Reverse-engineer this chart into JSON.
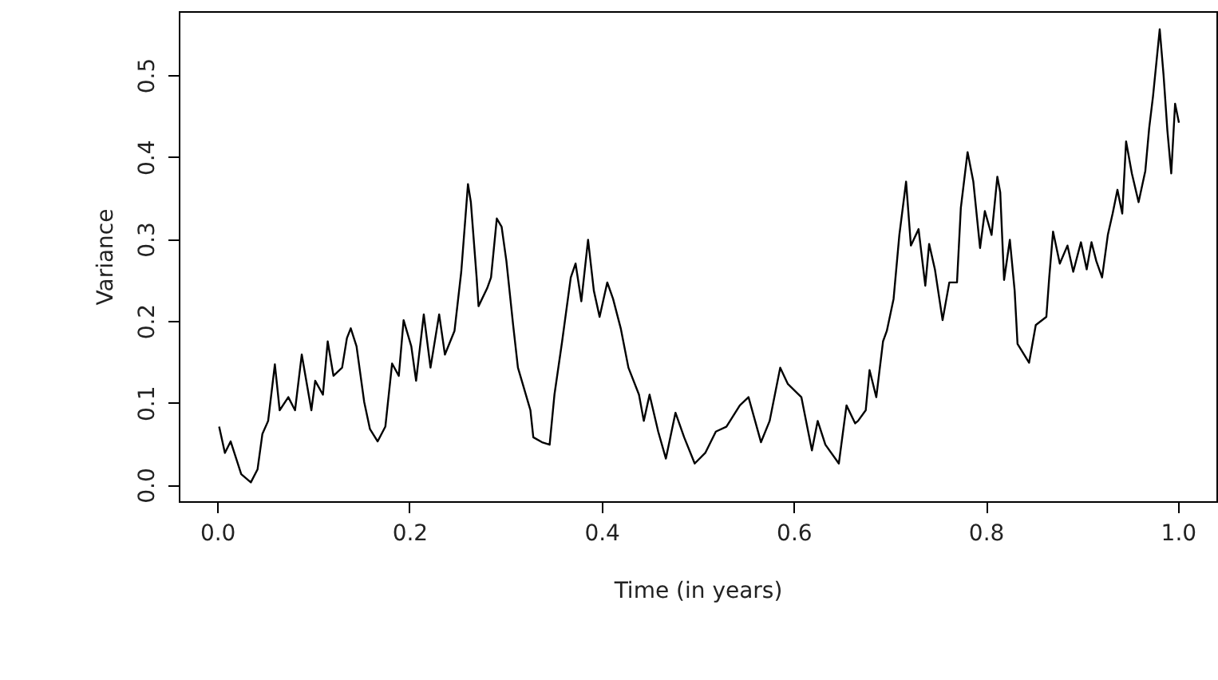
{
  "chart_data": {
    "type": "line",
    "xlabel": "Time (in years)",
    "ylabel": "Variance",
    "color": "#000000",
    "x": [
      0.002,
      0.008,
      0.014,
      0.025,
      0.035,
      0.042,
      0.047,
      0.053,
      0.06,
      0.065,
      0.074,
      0.081,
      0.088,
      0.098,
      0.102,
      0.11,
      0.115,
      0.121,
      0.13,
      0.135,
      0.139,
      0.145,
      0.153,
      0.159,
      0.167,
      0.175,
      0.182,
      0.189,
      0.194,
      0.202,
      0.207,
      0.215,
      0.222,
      0.231,
      0.237,
      0.247,
      0.254,
      0.261,
      0.264,
      0.27,
      0.272,
      0.281,
      0.285,
      0.291,
      0.296,
      0.301,
      0.308,
      0.313,
      0.318,
      0.326,
      0.329,
      0.338,
      0.346,
      0.351,
      0.359,
      0.368,
      0.373,
      0.379,
      0.386,
      0.392,
      0.398,
      0.406,
      0.412,
      0.42,
      0.428,
      0.439,
      0.444,
      0.45,
      0.459,
      0.467,
      0.477,
      0.486,
      0.497,
      0.508,
      0.519,
      0.53,
      0.544,
      0.553,
      0.566,
      0.575,
      0.586,
      0.594,
      0.608,
      0.619,
      0.625,
      0.633,
      0.647,
      0.655,
      0.664,
      0.667,
      0.675,
      0.679,
      0.686,
      0.693,
      0.697,
      0.704,
      0.71,
      0.717,
      0.722,
      0.73,
      0.737,
      0.741,
      0.747,
      0.755,
      0.762,
      0.77,
      0.774,
      0.781,
      0.787,
      0.794,
      0.799,
      0.806,
      0.812,
      0.815,
      0.819,
      0.825,
      0.83,
      0.833,
      0.845,
      0.852,
      0.863,
      0.866,
      0.87,
      0.877,
      0.885,
      0.891,
      0.899,
      0.905,
      0.91,
      0.915,
      0.921,
      0.927,
      0.932,
      0.937,
      0.942,
      0.946,
      0.952,
      0.959,
      0.966,
      0.97,
      0.974,
      0.981,
      0.985,
      0.989,
      0.993,
      0.997,
      1.001
    ],
    "values": [
      0.071,
      0.039,
      0.053,
      0.013,
      0.003,
      0.019,
      0.062,
      0.078,
      0.147,
      0.091,
      0.107,
      0.091,
      0.159,
      0.091,
      0.127,
      0.11,
      0.175,
      0.133,
      0.143,
      0.179,
      0.191,
      0.169,
      0.101,
      0.068,
      0.053,
      0.071,
      0.148,
      0.133,
      0.201,
      0.169,
      0.127,
      0.208,
      0.143,
      0.208,
      0.159,
      0.188,
      0.26,
      0.367,
      0.345,
      0.253,
      0.218,
      0.24,
      0.253,
      0.325,
      0.315,
      0.273,
      0.195,
      0.143,
      0.123,
      0.091,
      0.058,
      0.052,
      0.049,
      0.11,
      0.175,
      0.253,
      0.27,
      0.224,
      0.299,
      0.237,
      0.205,
      0.247,
      0.227,
      0.191,
      0.143,
      0.11,
      0.078,
      0.11,
      0.065,
      0.032,
      0.088,
      0.058,
      0.026,
      0.039,
      0.065,
      0.071,
      0.097,
      0.107,
      0.052,
      0.078,
      0.143,
      0.123,
      0.107,
      0.042,
      0.078,
      0.049,
      0.026,
      0.097,
      0.075,
      0.078,
      0.091,
      0.14,
      0.107,
      0.175,
      0.188,
      0.227,
      0.305,
      0.37,
      0.292,
      0.312,
      0.243,
      0.294,
      0.263,
      0.201,
      0.247,
      0.247,
      0.338,
      0.406,
      0.37,
      0.289,
      0.334,
      0.305,
      0.376,
      0.357,
      0.25,
      0.299,
      0.237,
      0.172,
      0.149,
      0.195,
      0.205,
      0.253,
      0.309,
      0.27,
      0.292,
      0.26,
      0.296,
      0.263,
      0.296,
      0.273,
      0.253,
      0.305,
      0.331,
      0.36,
      0.331,
      0.419,
      0.38,
      0.345,
      0.383,
      0.435,
      0.474,
      0.556,
      0.5,
      0.432,
      0.38,
      0.465,
      0.442
    ],
    "xlim": [
      -0.04,
      1.04
    ],
    "ylim": [
      -0.02,
      0.578
    ],
    "xticks": [
      {
        "value": 0,
        "label": "0.0"
      },
      0.2,
      0.4,
      0.6,
      0.8,
      {
        "value": 1,
        "label": "1.0"
      }
    ],
    "yticks": [
      {
        "value": 0,
        "label": "0.0"
      },
      0.1,
      0.2,
      0.3,
      0.4,
      0.5
    ]
  }
}
